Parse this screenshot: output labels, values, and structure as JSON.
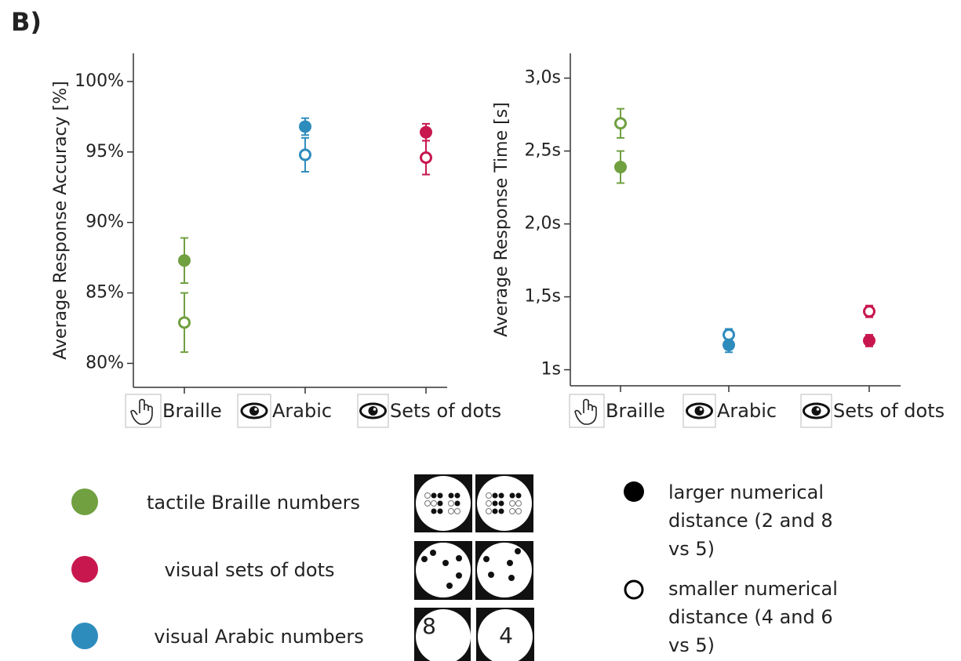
{
  "panel_label": "B)",
  "chart_data": [
    {
      "type": "errorbar-dot",
      "y_label": "Average Response Accuracy [%]",
      "categories": [
        "Braille",
        "Arabic",
        "Sets of dots"
      ],
      "colors": [
        "#70a040",
        "#2e8cbd",
        "#c8174f"
      ],
      "ylim": [
        78.3,
        102
      ],
      "yticks": [
        {
          "value": 80,
          "label": "80%"
        },
        {
          "value": 85,
          "label": "85%"
        },
        {
          "value": 90,
          "label": "90%"
        },
        {
          "value": 95,
          "label": "95%"
        },
        {
          "value": 100,
          "label": "100%"
        }
      ],
      "series": [
        {
          "name": "larger numerical distance (2 and 8 vs 5)",
          "marker": "filled",
          "values": [
            87.3,
            96.8,
            96.4
          ],
          "errors": [
            1.6,
            0.6,
            0.6
          ]
        },
        {
          "name": "smaller numerical distance (4 and 6 vs 5)",
          "marker": "open",
          "values": [
            82.9,
            94.8,
            94.6
          ],
          "errors": [
            2.1,
            1.2,
            1.2
          ]
        }
      ]
    },
    {
      "type": "errorbar-dot",
      "y_label": "Average Response Time [s]",
      "categories": [
        "Braille",
        "Arabic",
        "Sets of dots"
      ],
      "colors": [
        "#70a040",
        "#2e8cbd",
        "#c8174f"
      ],
      "ylim": [
        0.89,
        3.17
      ],
      "yticks": [
        {
          "value": 1,
          "label": "1s"
        },
        {
          "value": 1.5,
          "label": "1,5s"
        },
        {
          "value": 2,
          "label": "2,0s"
        },
        {
          "value": 2.5,
          "label": "2,5s"
        },
        {
          "value": 3,
          "label": "3,0s"
        }
      ],
      "series": [
        {
          "marker": "filled",
          "values": [
            2.39,
            1.17,
            1.2
          ],
          "errors": [
            0.11,
            0.05,
            0.04
          ]
        },
        {
          "marker": "open",
          "values": [
            2.69,
            1.24,
            1.4
          ],
          "errors": [
            0.1,
            0.04,
            0.04
          ]
        }
      ]
    }
  ],
  "color_legend": [
    {
      "label": "tactile Braille numbers",
      "color": "#70a040"
    },
    {
      "label": "visual sets of dots",
      "color": "#c8174f"
    },
    {
      "label": "visual Arabic numbers",
      "color": "#2e8cbd"
    }
  ],
  "stimulus_digits": [
    "8",
    "4"
  ]
}
